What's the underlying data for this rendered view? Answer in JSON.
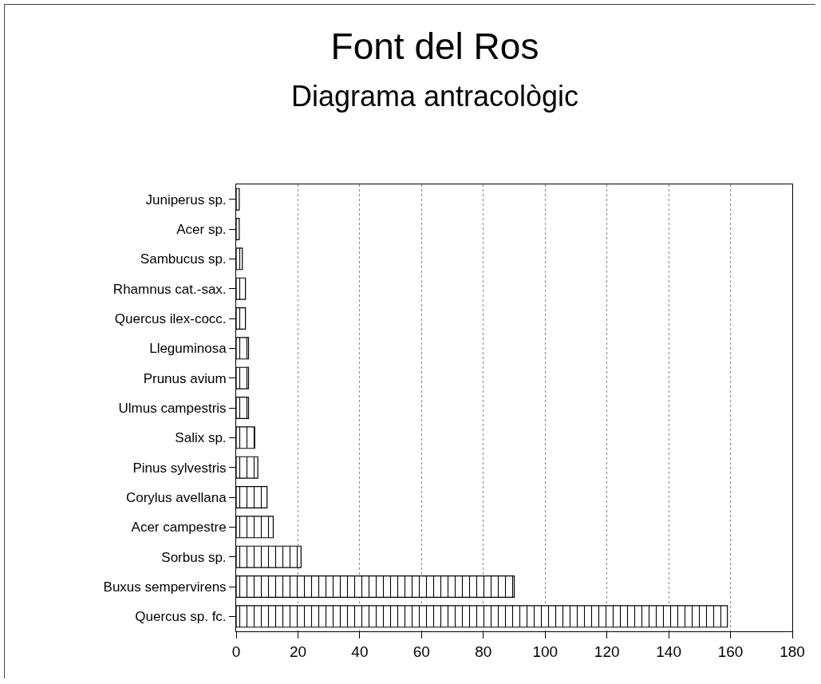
{
  "chart_data": {
    "type": "bar",
    "orientation": "horizontal",
    "title": "Font del Ros",
    "subtitle": "Diagrama antracològic",
    "categories": [
      "Juniperus sp.",
      "Acer sp.",
      "Sambucus sp.",
      "Rhamnus cat.-sax.",
      "Quercus ilex-cocc.",
      "Lleguminosa",
      "Prunus avium",
      "Ulmus campestris",
      "Salix sp.",
      "Pinus sylvestris",
      "Corylus avellana",
      "Acer campestre",
      "Sorbus sp.",
      "Buxus sempervirens",
      "Quercus sp. fc."
    ],
    "values": [
      1,
      1,
      2,
      3,
      3,
      4,
      4,
      4,
      6,
      7,
      10,
      12,
      21,
      90,
      159
    ],
    "color": "#000000",
    "xlim": [
      0,
      180
    ],
    "xticks": [
      0,
      20,
      40,
      60,
      80,
      100,
      120,
      140,
      160,
      180
    ],
    "grid": "x"
  }
}
